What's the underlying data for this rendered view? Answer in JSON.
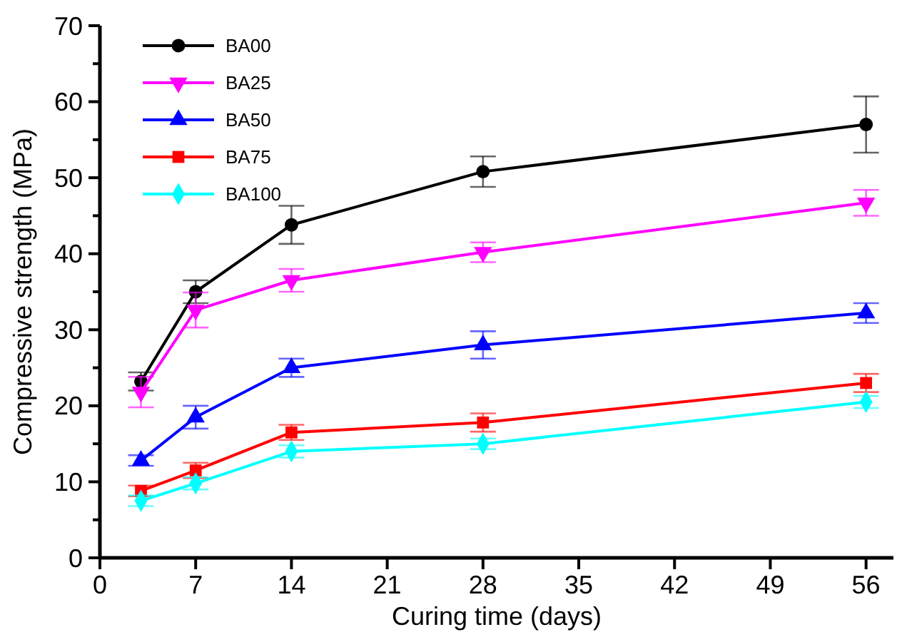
{
  "chart_data": {
    "type": "line",
    "xlabel": "Curing time (days)",
    "ylabel": "Compressive strength (MPa)",
    "x": [
      3,
      7,
      14,
      28,
      56
    ],
    "xlim": [
      0,
      58
    ],
    "xticks": [
      0,
      7,
      14,
      21,
      28,
      35,
      42,
      49,
      56
    ],
    "ylim": [
      0,
      70
    ],
    "yticks": [
      0,
      10,
      20,
      30,
      40,
      50,
      60,
      70
    ],
    "legend": "top left",
    "grid": false,
    "line_style": "solid",
    "series": [
      {
        "name": "BA00",
        "color": "#000000",
        "marker": "circle",
        "values": [
          23.2,
          35,
          43.8,
          50.8,
          57
        ],
        "errors": [
          1.2,
          1.5,
          2.5,
          2,
          3.7
        ]
      },
      {
        "name": "BA25",
        "color": "#ff00ff",
        "marker": "triangle-down",
        "values": [
          21.8,
          32.6,
          36.5,
          40.2,
          46.7
        ],
        "errors": [
          2,
          2.3,
          1.5,
          1.3,
          1.7
        ]
      },
      {
        "name": "BA50",
        "color": "#0000ff",
        "marker": "triangle",
        "values": [
          12.8,
          18.5,
          25,
          28,
          32.2
        ],
        "errors": [
          0.7,
          1.5,
          1.2,
          1.8,
          1.3
        ]
      },
      {
        "name": "BA75",
        "color": "#ff0000",
        "marker": "square",
        "values": [
          8.8,
          11.5,
          16.5,
          17.8,
          23
        ],
        "errors": [
          0.7,
          1,
          1,
          1.2,
          1.2
        ]
      },
      {
        "name": "BA100",
        "color": "#00ffff",
        "marker": "diamond",
        "values": [
          7.5,
          9.8,
          14,
          15,
          20.5
        ],
        "errors": [
          0.7,
          0.8,
          0.8,
          0.7,
          0.8
        ]
      }
    ]
  }
}
